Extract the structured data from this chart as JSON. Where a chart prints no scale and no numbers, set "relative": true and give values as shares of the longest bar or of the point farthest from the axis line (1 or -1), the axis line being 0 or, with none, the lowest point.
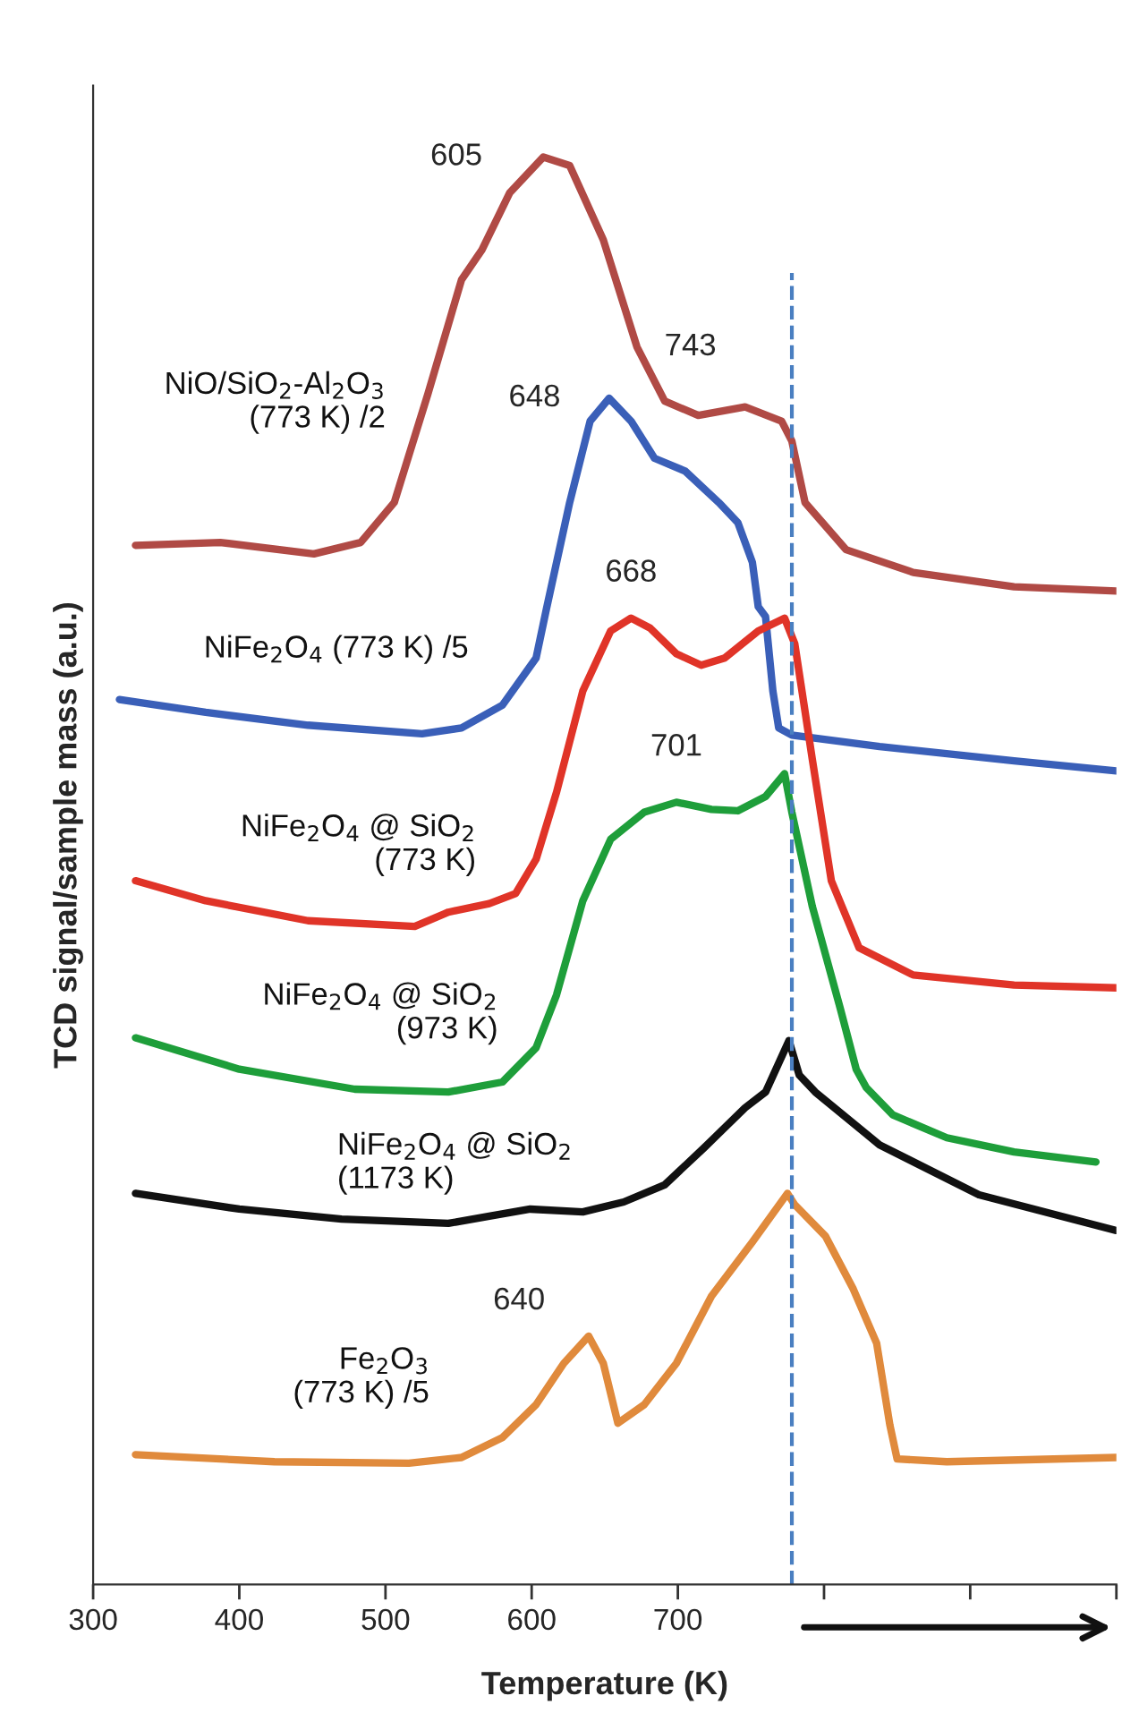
{
  "chart_data": {
    "type": "line",
    "relative": true,
    "xlabel": "Temperature (K)",
    "ylabel": "TCD signal/sample mass (a.u.)",
    "xlim": [
      300,
      1000
    ],
    "xticks": [
      300,
      400,
      500,
      600,
      700,
      {
        "value": 800,
        "label": null
      },
      {
        "value": 900,
        "label": null
      },
      {
        "value": 1000,
        "label": null
      }
    ],
    "tick_labels": "x",
    "grid": false,
    "legend": false,
    "marker": "none",
    "line_style": "solid",
    "series": [
      {
        "name": "NiO/SiO$_{2}$-Al$_{2}$O$_{3}$\n(773 K) /2",
        "color": "#b04a45",
        "x": [
          329,
          387,
          451,
          483,
          506,
          529,
          552,
          566,
          585,
          608,
          626,
          649,
          672,
          691,
          714,
          746,
          771,
          778,
          787,
          815,
          861,
          930,
          1000
        ],
        "values": [
          0.728,
          0.73,
          0.722,
          0.73,
          0.758,
          0.834,
          0.914,
          0.935,
          0.975,
          1.0,
          0.994,
          0.942,
          0.867,
          0.829,
          0.819,
          0.825,
          0.815,
          0.801,
          0.758,
          0.725,
          0.709,
          0.699,
          0.696
        ]
      },
      {
        "name": "NiFe$_{2}$O$_{4}$ (773 K) /5",
        "color": "#3a5fb8",
        "x": [
          318,
          377,
          447,
          525,
          552,
          580,
          603,
          610,
          626,
          640,
          653,
          668,
          684,
          705,
          728,
          741,
          751,
          755,
          760,
          765,
          769,
          778,
          838,
          930,
          1000
        ],
        "values": [
          0.62,
          0.611,
          0.602,
          0.596,
          0.6,
          0.616,
          0.649,
          0.683,
          0.758,
          0.815,
          0.831,
          0.815,
          0.789,
          0.78,
          0.758,
          0.744,
          0.716,
          0.685,
          0.678,
          0.626,
          0.6,
          0.595,
          0.587,
          0.577,
          0.57
        ]
      },
      {
        "name": "NiFe$_{2}$O$_{4}$ @ SiO$_{2}$\n(773 K)",
        "color": "#e03428",
        "x": [
          329,
          377,
          447,
          520,
          543,
          571,
          589,
          603,
          617,
          635,
          654,
          668,
          681,
          699,
          716,
          732,
          755,
          773,
          780,
          792,
          805,
          824,
          861,
          930,
          1000
        ],
        "values": [
          0.493,
          0.479,
          0.465,
          0.461,
          0.471,
          0.477,
          0.484,
          0.508,
          0.555,
          0.626,
          0.668,
          0.677,
          0.67,
          0.652,
          0.644,
          0.649,
          0.668,
          0.677,
          0.659,
          0.578,
          0.493,
          0.446,
          0.427,
          0.42,
          0.418
        ]
      },
      {
        "name": "NiFe$_{2}$O$_{4}$ @ SiO$_{2}$\n(973 K)",
        "color": "#1e9e3a",
        "x": [
          329,
          400,
          479,
          543,
          580,
          603,
          617,
          635,
          654,
          677,
          699,
          723,
          741,
          760,
          773,
          778,
          792,
          811,
          822,
          829,
          847,
          884,
          930,
          986
        ],
        "values": [
          0.383,
          0.361,
          0.347,
          0.345,
          0.352,
          0.376,
          0.413,
          0.479,
          0.522,
          0.541,
          0.548,
          0.543,
          0.542,
          0.552,
          0.568,
          0.541,
          0.475,
          0.404,
          0.361,
          0.348,
          0.329,
          0.313,
          0.303,
          0.296
        ]
      },
      {
        "name": "NiFe$_{2}$O$_{4}$ @ SiO$_{2}$\n(1173 K)",
        "color": "#111111",
        "x": [
          329,
          400,
          470,
          543,
          571,
          599,
          635,
          663,
          691,
          718,
          746,
          760,
          776,
          783,
          794,
          838,
          906,
          1000
        ],
        "values": [
          0.274,
          0.263,
          0.256,
          0.253,
          0.258,
          0.263,
          0.261,
          0.268,
          0.28,
          0.306,
          0.334,
          0.345,
          0.381,
          0.357,
          0.345,
          0.308,
          0.273,
          0.248
        ]
      },
      {
        "name": "Fe$_{2}$O$_{3}$\n(773 K) /5",
        "color": "#e08a3c",
        "x": [
          329,
          424,
          516,
          552,
          580,
          603,
          622,
          639,
          649,
          659,
          677,
          699,
          723,
          751,
          775,
          780,
          801,
          820,
          836,
          845,
          850,
          884,
          1000
        ],
        "values": [
          0.091,
          0.086,
          0.085,
          0.089,
          0.103,
          0.126,
          0.155,
          0.174,
          0.155,
          0.113,
          0.126,
          0.155,
          0.202,
          0.24,
          0.274,
          0.266,
          0.244,
          0.207,
          0.169,
          0.112,
          0.088,
          0.086,
          0.089
        ]
      }
    ],
    "ref_lines": [
      {
        "axis": "x",
        "value": 778,
        "color": "#4a7fc1",
        "line_style": "dashed"
      }
    ],
    "annotations": [
      {
        "text": "605",
        "x": 608,
        "y": 1.0
      },
      {
        "text": "743",
        "x": 746,
        "y": 0.825
      },
      {
        "text": "648",
        "x": 653,
        "y": 0.831
      },
      {
        "text": "668",
        "x": 668,
        "y": 0.677
      },
      {
        "text": "701",
        "x": 699,
        "y": 0.548
      },
      {
        "text": "640",
        "x": 639,
        "y": 0.174
      }
    ]
  }
}
